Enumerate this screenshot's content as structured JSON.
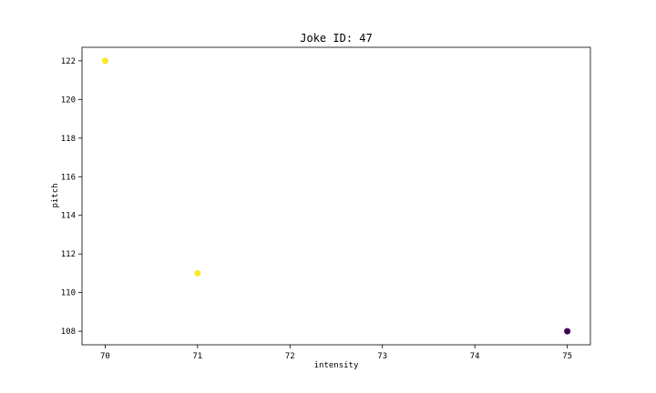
{
  "chart_data": {
    "type": "scatter",
    "title": "Joke ID: 47",
    "xlabel": "intensity",
    "ylabel": "pitch",
    "xlim": [
      69.75,
      75.25
    ],
    "ylim": [
      107.3,
      122.7
    ],
    "xticks": [
      70,
      71,
      72,
      73,
      74,
      75
    ],
    "yticks": [
      108,
      110,
      112,
      114,
      116,
      118,
      120,
      122
    ],
    "grid": false,
    "points": [
      {
        "x": 70,
        "y": 122,
        "color": "#fde725"
      },
      {
        "x": 71,
        "y": 111,
        "color": "#fde725"
      },
      {
        "x": 75,
        "y": 108,
        "color": "#440154"
      }
    ]
  }
}
